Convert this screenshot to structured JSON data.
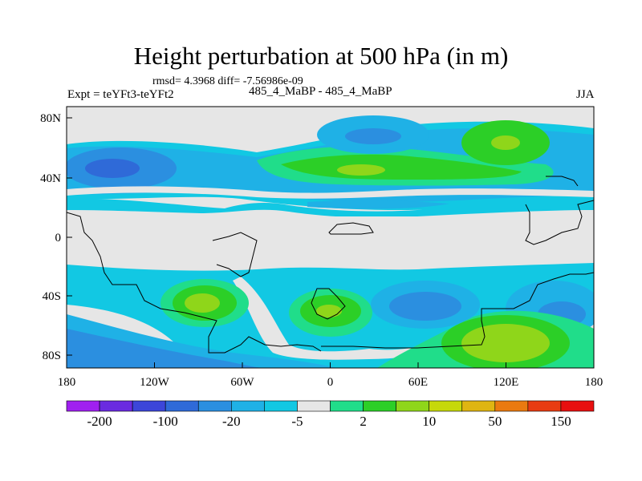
{
  "title": "Height perturbation at 500 hPa (in m)",
  "stats": "rmsd= 4.3968  diff= -7.56986e-09",
  "expt": "Expt = teYFt3-teYFt2",
  "case": "485_4_MaBP - 485_4_MaBP",
  "season": "JJA",
  "map": {
    "background_color": "#e6e6e6",
    "lat_ticks": [
      "80N",
      "40N",
      "0",
      "40S",
      "80S"
    ],
    "lon_ticks": [
      "180",
      "120W",
      "60W",
      "0",
      "60E",
      "120E",
      "180"
    ]
  },
  "colorbar": {
    "colors": [
      "#a020f0",
      "#6a2be0",
      "#3c46d9",
      "#2f6ad8",
      "#2b8fe0",
      "#1fb1e6",
      "#12c8e3",
      "#e6e6e6",
      "#20dd8a",
      "#2ccf27",
      "#8fd61a",
      "#c6d80a",
      "#dfb512",
      "#ea7a10",
      "#e83c12",
      "#e81010"
    ],
    "labels": [
      "-200",
      "-100",
      "-20",
      "-5",
      "2",
      "10",
      "50",
      "150"
    ]
  }
}
